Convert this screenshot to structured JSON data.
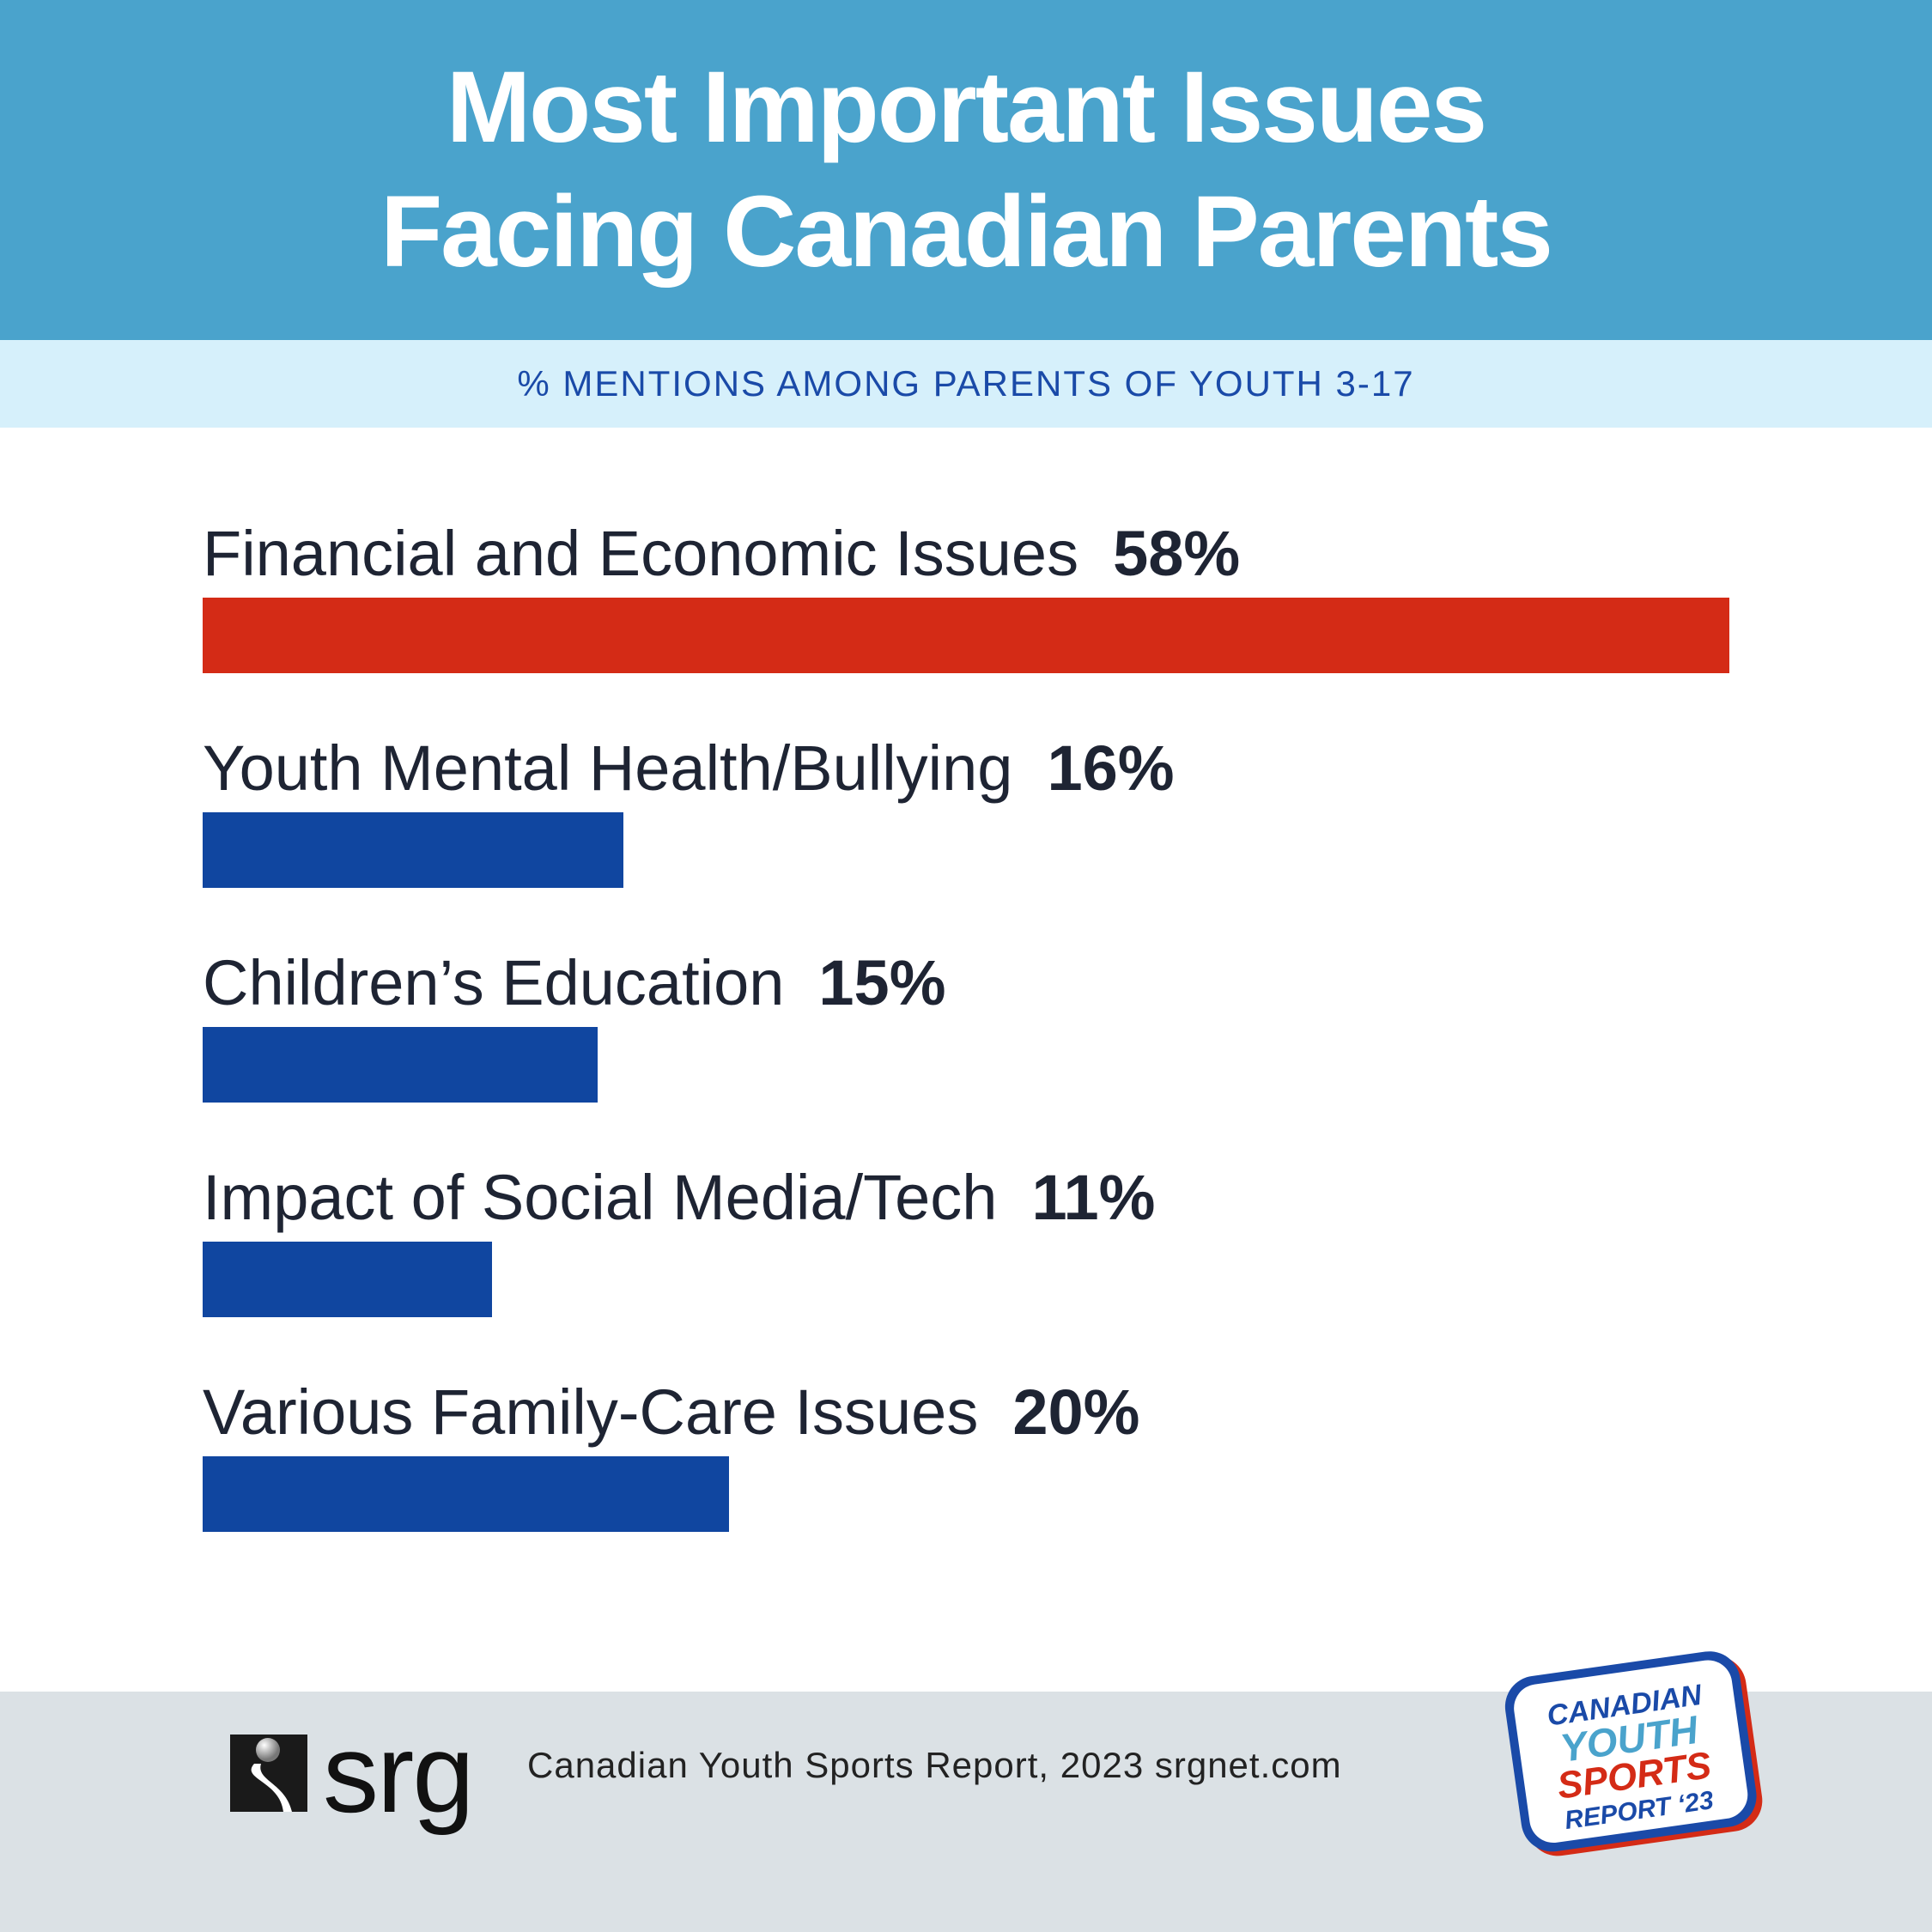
{
  "header": {
    "title_line_1": "Most Important Issues",
    "title_line_2": "Facing Canadian Parents",
    "subtitle": "% MENTIONS AMONG PARENTS OF YOUTH 3-17"
  },
  "chart_data": {
    "type": "bar",
    "orientation": "horizontal",
    "title": "Most Important Issues Facing Canadian Parents",
    "subtitle": "% MENTIONS AMONG PARENTS OF YOUTH 3-17",
    "categories": [
      "Financial and Economic Issues",
      "Youth Mental Health/Bullying",
      "Children’s Education",
      "Impact of Social Media/Tech",
      "Various Family-Care Issues"
    ],
    "values": [
      58,
      16,
      15,
      11,
      20
    ],
    "value_labels": [
      "58%",
      "16%",
      "15%",
      "11%",
      "20%"
    ],
    "bar_colors": [
      "#d42b16",
      "#1046a0",
      "#1046a0",
      "#1046a0",
      "#1046a0"
    ],
    "xlim": [
      0,
      58
    ],
    "grid": false,
    "legend": "none"
  },
  "footer": {
    "logo_text": "srg",
    "source": "Canadian Youth Sports Report, 2023  srgnet.com",
    "badge_lines": [
      "CANADIAN",
      "YOUTH",
      "SPORTS",
      "REPORT ‘23"
    ]
  },
  "colors": {
    "header_bg": "#4aa3cc",
    "subbar_bg": "#d6f0fb",
    "footer_bg": "#dbe1e5",
    "highlight": "#d42b16",
    "bar": "#1046a0",
    "badge_blue": "#1a4aa8",
    "badge_light_blue": "#4aa3cc",
    "badge_red": "#d42b16"
  }
}
